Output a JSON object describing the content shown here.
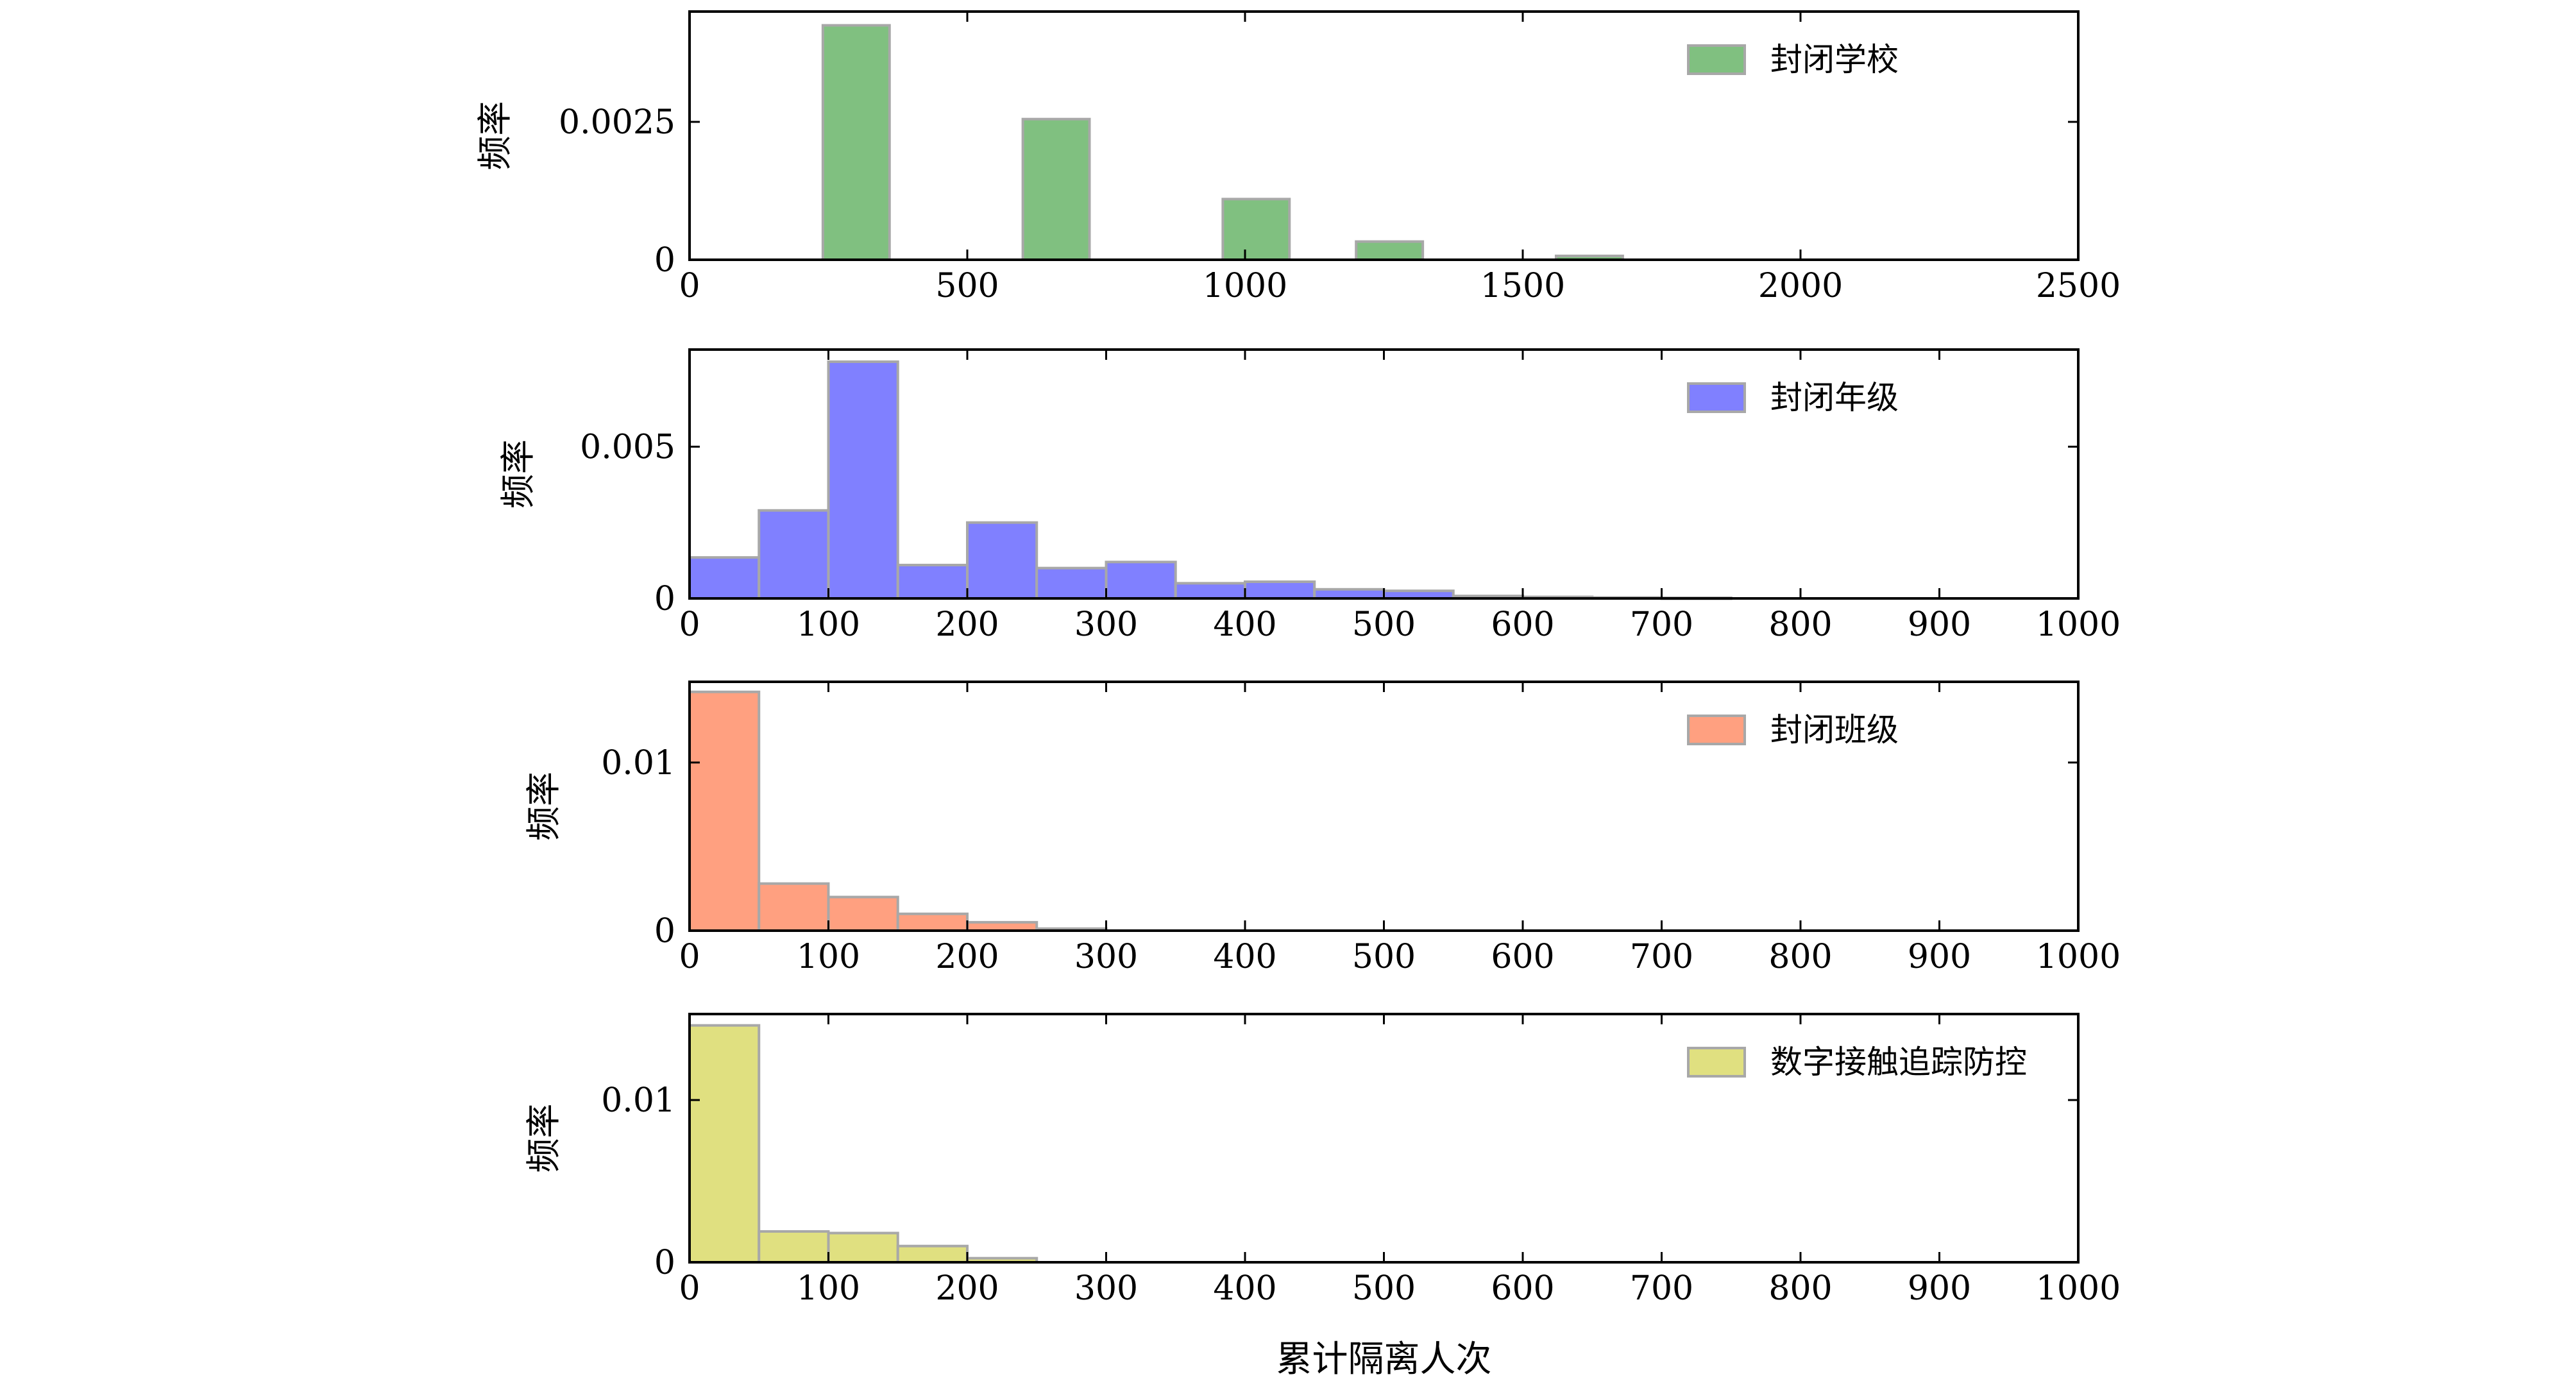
{
  "chart_data": [
    {
      "type": "bar",
      "legend": "封闭学校",
      "color": "#80c080",
      "ylabel": "频率",
      "xlim": [
        0,
        2500
      ],
      "ylim": [
        0,
        0.0045
      ],
      "xticks": [
        "0",
        "500",
        "1000",
        "1500",
        "2000",
        "2500"
      ],
      "yticks": [
        "0",
        "0.0025"
      ],
      "bins": [
        {
          "x0": 240,
          "x1": 360,
          "value": 0.00425
        },
        {
          "x0": 600,
          "x1": 720,
          "value": 0.00255
        },
        {
          "x0": 960,
          "x1": 1080,
          "value": 0.0011
        },
        {
          "x0": 1200,
          "x1": 1320,
          "value": 0.00033
        },
        {
          "x0": 1560,
          "x1": 1680,
          "value": 7e-05
        }
      ]
    },
    {
      "type": "bar",
      "legend": "封闭年级",
      "color": "#8080ff",
      "ylabel": "频率",
      "xlim": [
        0,
        1000
      ],
      "ylim": [
        0,
        0.0082
      ],
      "xticks": [
        "0",
        "100",
        "200",
        "300",
        "400",
        "500",
        "600",
        "700",
        "800",
        "900",
        "1000"
      ],
      "yticks": [
        "0",
        "0.005"
      ],
      "bins": [
        {
          "x0": 0,
          "x1": 50,
          "value": 0.00135
        },
        {
          "x0": 50,
          "x1": 100,
          "value": 0.0029
        },
        {
          "x0": 100,
          "x1": 150,
          "value": 0.0078
        },
        {
          "x0": 150,
          "x1": 200,
          "value": 0.0011
        },
        {
          "x0": 200,
          "x1": 250,
          "value": 0.0025
        },
        {
          "x0": 250,
          "x1": 300,
          "value": 0.001
        },
        {
          "x0": 300,
          "x1": 350,
          "value": 0.0012
        },
        {
          "x0": 350,
          "x1": 400,
          "value": 0.0005
        },
        {
          "x0": 400,
          "x1": 450,
          "value": 0.00055
        },
        {
          "x0": 450,
          "x1": 500,
          "value": 0.0003
        },
        {
          "x0": 500,
          "x1": 550,
          "value": 0.00025
        },
        {
          "x0": 550,
          "x1": 600,
          "value": 8e-05
        },
        {
          "x0": 600,
          "x1": 650,
          "value": 5e-05
        },
        {
          "x0": 650,
          "x1": 700,
          "value": 3e-05
        },
        {
          "x0": 700,
          "x1": 750,
          "value": 2e-05
        }
      ]
    },
    {
      "type": "bar",
      "legend": "封闭班级",
      "color": "#ffa080",
      "ylabel": "频率",
      "xlim": [
        0,
        1000
      ],
      "ylim": [
        0,
        0.0148
      ],
      "xticks": [
        "0",
        "100",
        "200",
        "300",
        "400",
        "500",
        "600",
        "700",
        "800",
        "900",
        "1000"
      ],
      "yticks": [
        "0",
        "0.01"
      ],
      "bins": [
        {
          "x0": 0,
          "x1": 50,
          "value": 0.0142
        },
        {
          "x0": 50,
          "x1": 100,
          "value": 0.0028
        },
        {
          "x0": 100,
          "x1": 150,
          "value": 0.002
        },
        {
          "x0": 150,
          "x1": 200,
          "value": 0.001
        },
        {
          "x0": 200,
          "x1": 250,
          "value": 0.0005
        },
        {
          "x0": 250,
          "x1": 300,
          "value": 0.00012
        }
      ]
    },
    {
      "type": "bar",
      "legend": "数字接触追踪防控",
      "color": "#e0e080",
      "ylabel": "频率",
      "xlabel": "累计隔离人次",
      "xlim": [
        0,
        1000
      ],
      "ylim": [
        0,
        0.0153
      ],
      "xticks": [
        "0",
        "100",
        "200",
        "300",
        "400",
        "500",
        "600",
        "700",
        "800",
        "900",
        "1000"
      ],
      "yticks": [
        "0",
        "0.01"
      ],
      "bins": [
        {
          "x0": 0,
          "x1": 50,
          "value": 0.0146
        },
        {
          "x0": 50,
          "x1": 100,
          "value": 0.0019
        },
        {
          "x0": 100,
          "x1": 150,
          "value": 0.0018
        },
        {
          "x0": 150,
          "x1": 200,
          "value": 0.001
        },
        {
          "x0": 200,
          "x1": 250,
          "value": 0.00025
        }
      ]
    }
  ]
}
